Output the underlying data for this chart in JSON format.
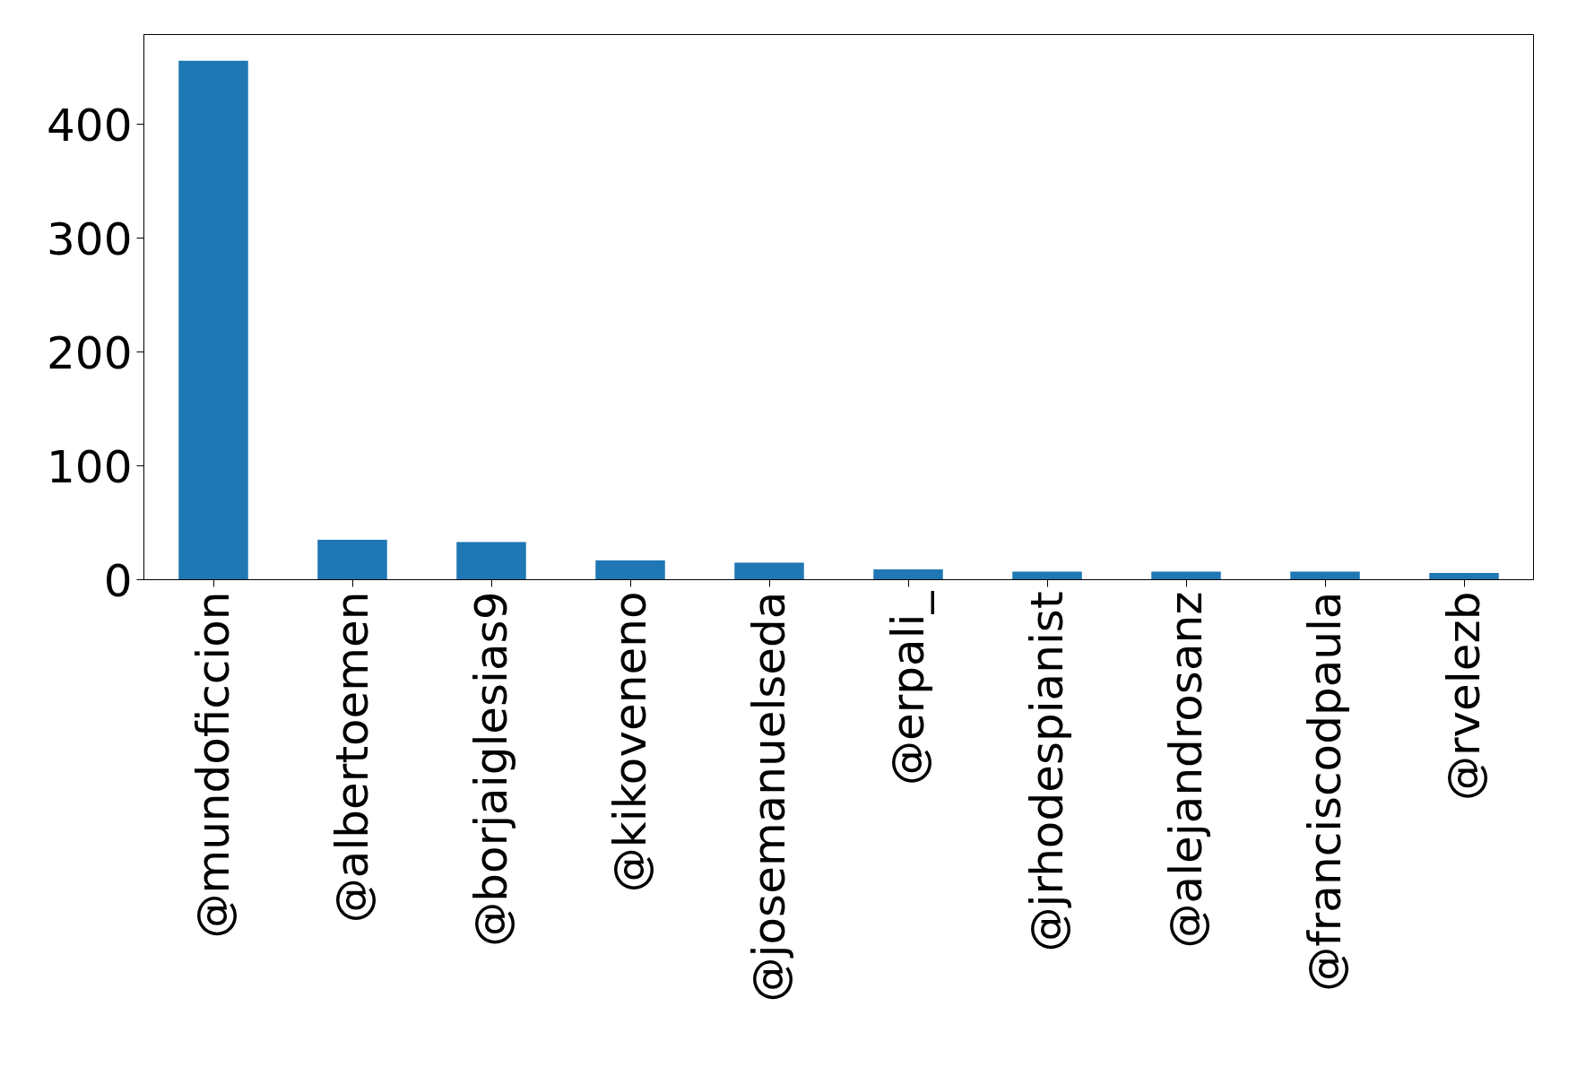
{
  "chart_data": {
    "type": "bar",
    "categories": [
      "@mundoficcion",
      "@albertoemen",
      "@borjaiglesias9",
      "@kikoveneno",
      "@josemanuelseda",
      "@erpali_",
      "@jrhodespianist",
      "@alejandrosanz",
      "@franciscodpaula",
      "@rvelezb"
    ],
    "values": [
      456,
      35,
      33,
      17,
      15,
      9,
      7,
      7,
      7,
      6
    ],
    "color": "#1f77b4",
    "ylim": [
      0,
      479
    ],
    "yticks": [
      0,
      100,
      200,
      300,
      400
    ],
    "grid": false
  }
}
